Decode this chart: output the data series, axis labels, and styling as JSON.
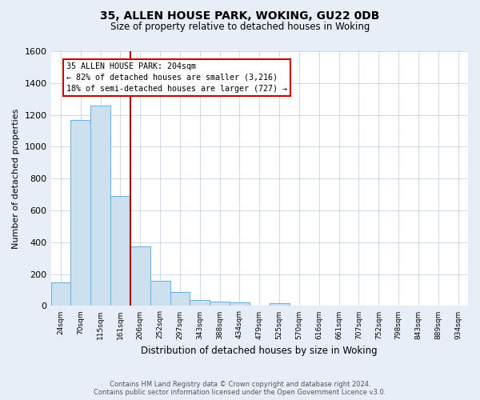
{
  "title": "35, ALLEN HOUSE PARK, WOKING, GU22 0DB",
  "subtitle": "Size of property relative to detached houses in Woking",
  "xlabel": "Distribution of detached houses by size in Woking",
  "ylabel": "Number of detached properties",
  "footnote1": "Contains HM Land Registry data © Crown copyright and database right 2024.",
  "footnote2": "Contains public sector information licensed under the Open Government Licence v3.0.",
  "bin_labels": [
    "24sqm",
    "70sqm",
    "115sqm",
    "161sqm",
    "206sqm",
    "252sqm",
    "297sqm",
    "343sqm",
    "388sqm",
    "434sqm",
    "479sqm",
    "525sqm",
    "570sqm",
    "616sqm",
    "661sqm",
    "707sqm",
    "752sqm",
    "798sqm",
    "843sqm",
    "889sqm",
    "934sqm"
  ],
  "bar_values": [
    148,
    1170,
    1260,
    690,
    375,
    160,
    90,
    35,
    25,
    20,
    0,
    18,
    0,
    0,
    0,
    0,
    0,
    0,
    0,
    0,
    0
  ],
  "bar_color": "#cce0f0",
  "bar_edge_color": "#6aaed6",
  "vline_color": "#aa0000",
  "annotation_title": "35 ALLEN HOUSE PARK: 204sqm",
  "annotation_line1": "← 82% of detached houses are smaller (3,216)",
  "annotation_line2": "18% of semi-detached houses are larger (727) →",
  "annotation_box_color": "#ffffff",
  "annotation_box_edge": "#cc0000",
  "ylim": [
    0,
    1600
  ],
  "yticks": [
    0,
    200,
    400,
    600,
    800,
    1000,
    1200,
    1400,
    1600
  ],
  "bg_color": "#e8eef8",
  "plot_bg_color": "#ffffff",
  "grid_color": "#c8d4e8"
}
